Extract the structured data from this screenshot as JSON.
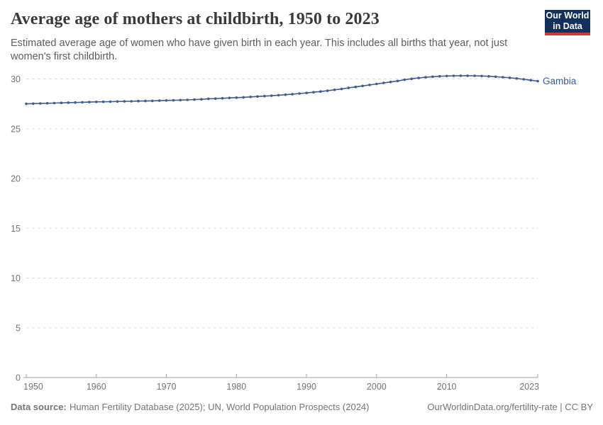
{
  "header": {
    "title": "Average age of mothers at childbirth, 1950 to 2023",
    "subtitle": "Estimated average age of women who have given birth in each year. This includes all births that year, not just women's first childbirth.",
    "logo_line1": "Our World",
    "logo_line2": "in Data"
  },
  "colors": {
    "line": "#3e5c96",
    "entity_label": "#3e5c96",
    "grid": "#dedede",
    "axis": "#a3a3a3",
    "tick_label": "#757575",
    "logo_bg": "#12305b",
    "logo_red": "#cc3c33"
  },
  "chart_data": {
    "type": "line",
    "title": "Average age of mothers at childbirth, 1950 to 2023",
    "entity": "Gambia",
    "xlabel": "",
    "ylabel": "",
    "xlim": [
      1950,
      2023
    ],
    "ylim": [
      0,
      30
    ],
    "x_ticks": [
      1950,
      1960,
      1970,
      1980,
      1990,
      2000,
      2010,
      2023
    ],
    "y_ticks": [
      0,
      5,
      10,
      15,
      20,
      25,
      30
    ],
    "grid": "horizontal-dashed",
    "legend": "series-label-at-line-end",
    "series": [
      {
        "name": "Gambia",
        "color": "#3e5c96",
        "x": [
          1950,
          1951,
          1952,
          1953,
          1954,
          1955,
          1956,
          1957,
          1958,
          1959,
          1960,
          1961,
          1962,
          1963,
          1964,
          1965,
          1966,
          1967,
          1968,
          1969,
          1970,
          1971,
          1972,
          1973,
          1974,
          1975,
          1976,
          1977,
          1978,
          1979,
          1980,
          1981,
          1982,
          1983,
          1984,
          1985,
          1986,
          1987,
          1988,
          1989,
          1990,
          1991,
          1992,
          1993,
          1994,
          1995,
          1996,
          1997,
          1998,
          1999,
          2000,
          2001,
          2002,
          2003,
          2004,
          2005,
          2006,
          2007,
          2008,
          2009,
          2010,
          2011,
          2012,
          2013,
          2014,
          2015,
          2016,
          2017,
          2018,
          2019,
          2020,
          2021,
          2022,
          2023
        ],
        "values": [
          27.5,
          27.52,
          27.54,
          27.56,
          27.58,
          27.6,
          27.62,
          27.64,
          27.66,
          27.68,
          27.7,
          27.71,
          27.72,
          27.74,
          27.75,
          27.76,
          27.78,
          27.79,
          27.8,
          27.82,
          27.84,
          27.86,
          27.88,
          27.9,
          27.93,
          27.96,
          28.0,
          28.03,
          28.06,
          28.1,
          28.13,
          28.16,
          28.2,
          28.24,
          28.28,
          28.32,
          28.37,
          28.42,
          28.48,
          28.54,
          28.6,
          28.67,
          28.74,
          28.82,
          28.91,
          29.0,
          29.1,
          29.2,
          29.3,
          29.4,
          29.5,
          29.6,
          29.7,
          29.8,
          29.92,
          30.02,
          30.1,
          30.17,
          30.23,
          30.27,
          30.3,
          30.32,
          30.33,
          30.33,
          30.32,
          30.3,
          30.27,
          30.23,
          30.18,
          30.12,
          30.05,
          29.97,
          29.88,
          29.78
        ]
      }
    ]
  },
  "footer": {
    "datasource_label": "Data source:",
    "datasource_text": "Human Fertility Database (2025); UN, World Population Prospects (2024)",
    "license_text": "OurWorldinData.org/fertility-rate | CC BY"
  }
}
